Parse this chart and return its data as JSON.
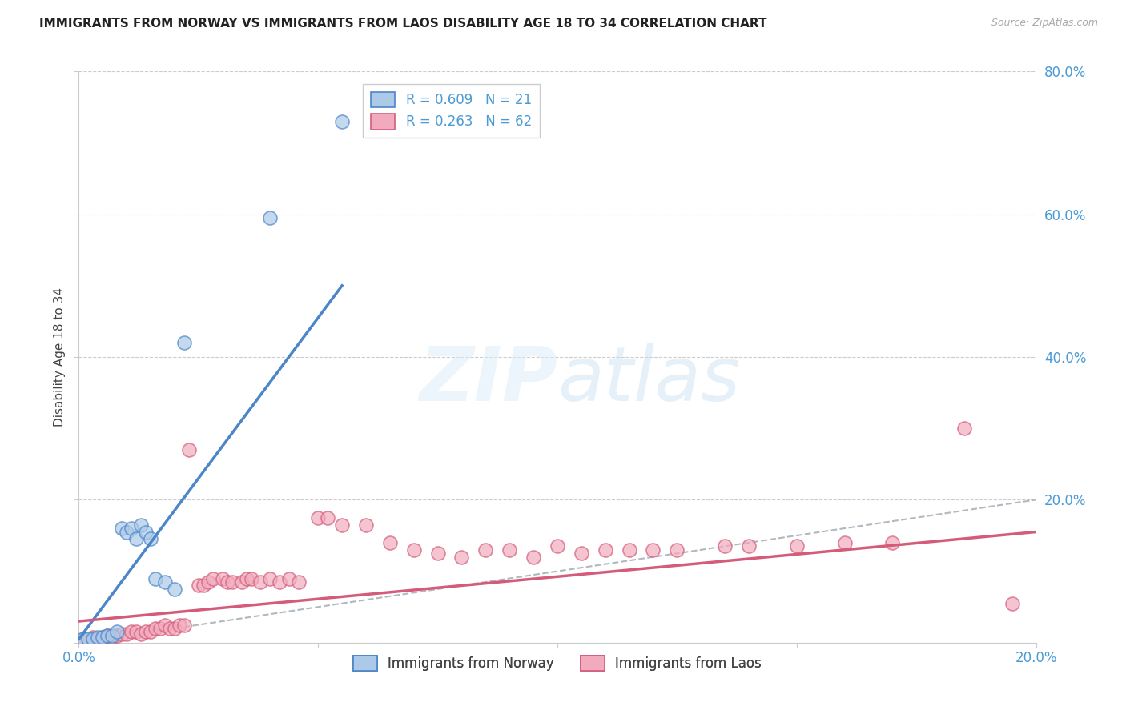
{
  "title": "IMMIGRANTS FROM NORWAY VS IMMIGRANTS FROM LAOS DISABILITY AGE 18 TO 34 CORRELATION CHART",
  "source": "Source: ZipAtlas.com",
  "ylabel": "Disability Age 18 to 34",
  "norway_R": 0.609,
  "norway_N": 21,
  "laos_R": 0.263,
  "laos_N": 62,
  "norway_color": "#adc9e8",
  "laos_color": "#f2abbe",
  "norway_line_color": "#4a86c8",
  "laos_line_color": "#d45c7a",
  "diagonal_color": "#b0b8c0",
  "xlim": [
    0.0,
    0.2
  ],
  "ylim": [
    0.0,
    0.8
  ],
  "norway_x": [
    0.001,
    0.002,
    0.003,
    0.004,
    0.005,
    0.006,
    0.007,
    0.008,
    0.009,
    0.01,
    0.011,
    0.012,
    0.013,
    0.014,
    0.015,
    0.016,
    0.018,
    0.02,
    0.022,
    0.04,
    0.055
  ],
  "norway_y": [
    0.005,
    0.005,
    0.005,
    0.008,
    0.008,
    0.01,
    0.01,
    0.015,
    0.16,
    0.155,
    0.16,
    0.145,
    0.165,
    0.155,
    0.145,
    0.09,
    0.085,
    0.075,
    0.42,
    0.595,
    0.73
  ],
  "laos_x": [
    0.001,
    0.002,
    0.003,
    0.004,
    0.005,
    0.006,
    0.007,
    0.008,
    0.009,
    0.01,
    0.011,
    0.012,
    0.013,
    0.014,
    0.015,
    0.016,
    0.017,
    0.018,
    0.019,
    0.02,
    0.021,
    0.022,
    0.023,
    0.025,
    0.026,
    0.027,
    0.028,
    0.03,
    0.031,
    0.032,
    0.034,
    0.035,
    0.036,
    0.038,
    0.04,
    0.042,
    0.044,
    0.046,
    0.05,
    0.052,
    0.055,
    0.06,
    0.065,
    0.07,
    0.075,
    0.08,
    0.085,
    0.09,
    0.095,
    0.1,
    0.105,
    0.11,
    0.115,
    0.12,
    0.125,
    0.135,
    0.14,
    0.15,
    0.16,
    0.17,
    0.185,
    0.195
  ],
  "laos_y": [
    0.005,
    0.005,
    0.008,
    0.005,
    0.008,
    0.01,
    0.008,
    0.01,
    0.012,
    0.012,
    0.015,
    0.015,
    0.012,
    0.015,
    0.015,
    0.02,
    0.02,
    0.025,
    0.02,
    0.02,
    0.025,
    0.025,
    0.27,
    0.08,
    0.08,
    0.085,
    0.09,
    0.09,
    0.085,
    0.085,
    0.085,
    0.09,
    0.09,
    0.085,
    0.09,
    0.085,
    0.09,
    0.085,
    0.175,
    0.175,
    0.165,
    0.165,
    0.14,
    0.13,
    0.125,
    0.12,
    0.13,
    0.13,
    0.12,
    0.135,
    0.125,
    0.13,
    0.13,
    0.13,
    0.13,
    0.135,
    0.135,
    0.135,
    0.14,
    0.14,
    0.3,
    0.055
  ],
  "norway_line_x": [
    0.0,
    0.055
  ],
  "norway_line_y": [
    0.005,
    0.5
  ],
  "laos_line_x": [
    0.0,
    0.2
  ],
  "laos_line_y": [
    0.03,
    0.155
  ]
}
